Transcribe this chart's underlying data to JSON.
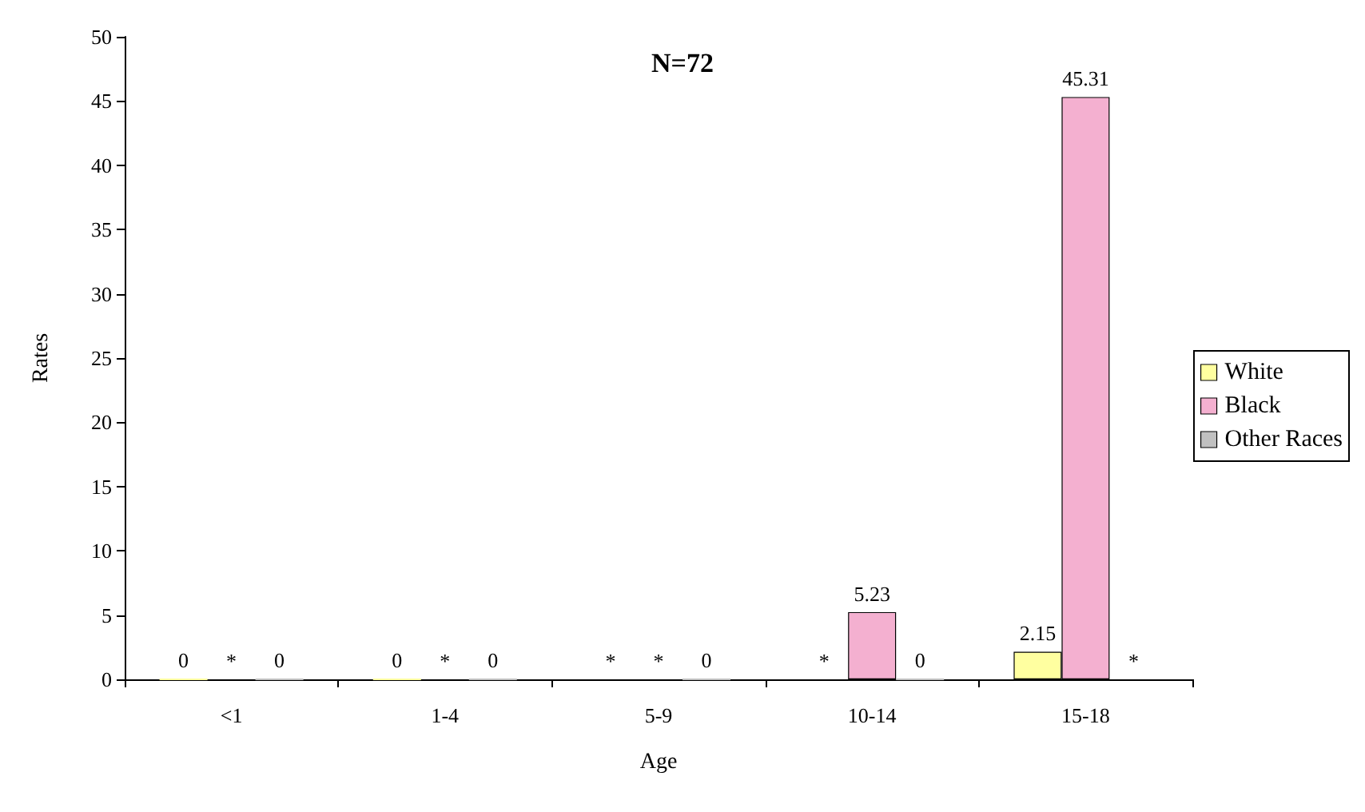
{
  "chart_data": {
    "type": "bar",
    "title": "N=72",
    "xlabel": "Age",
    "ylabel": "Rates",
    "categories": [
      "<1",
      "1-4",
      "5-9",
      "10-14",
      "15-18"
    ],
    "series": [
      {
        "name": "White",
        "color": "#ffffa0",
        "values": [
          0,
          0,
          null,
          null,
          2.15
        ],
        "value_labels": [
          "0",
          "0",
          "*",
          "*",
          "2.15"
        ]
      },
      {
        "name": "Black",
        "color": "#f4b0d0",
        "values": [
          null,
          null,
          null,
          5.23,
          45.31
        ],
        "value_labels": [
          "*",
          "*",
          "*",
          "5.23",
          "45.31"
        ]
      },
      {
        "name": "Other Races",
        "color": "#c0c0c0",
        "values": [
          0,
          0,
          0,
          0,
          null
        ],
        "value_labels": [
          "0",
          "0",
          "0",
          "0",
          "*"
        ]
      }
    ],
    "ylim": [
      0,
      50
    ],
    "yticks": [
      0,
      5,
      10,
      15,
      20,
      25,
      30,
      35,
      40,
      45,
      50
    ],
    "grid": false,
    "legend": "right"
  }
}
